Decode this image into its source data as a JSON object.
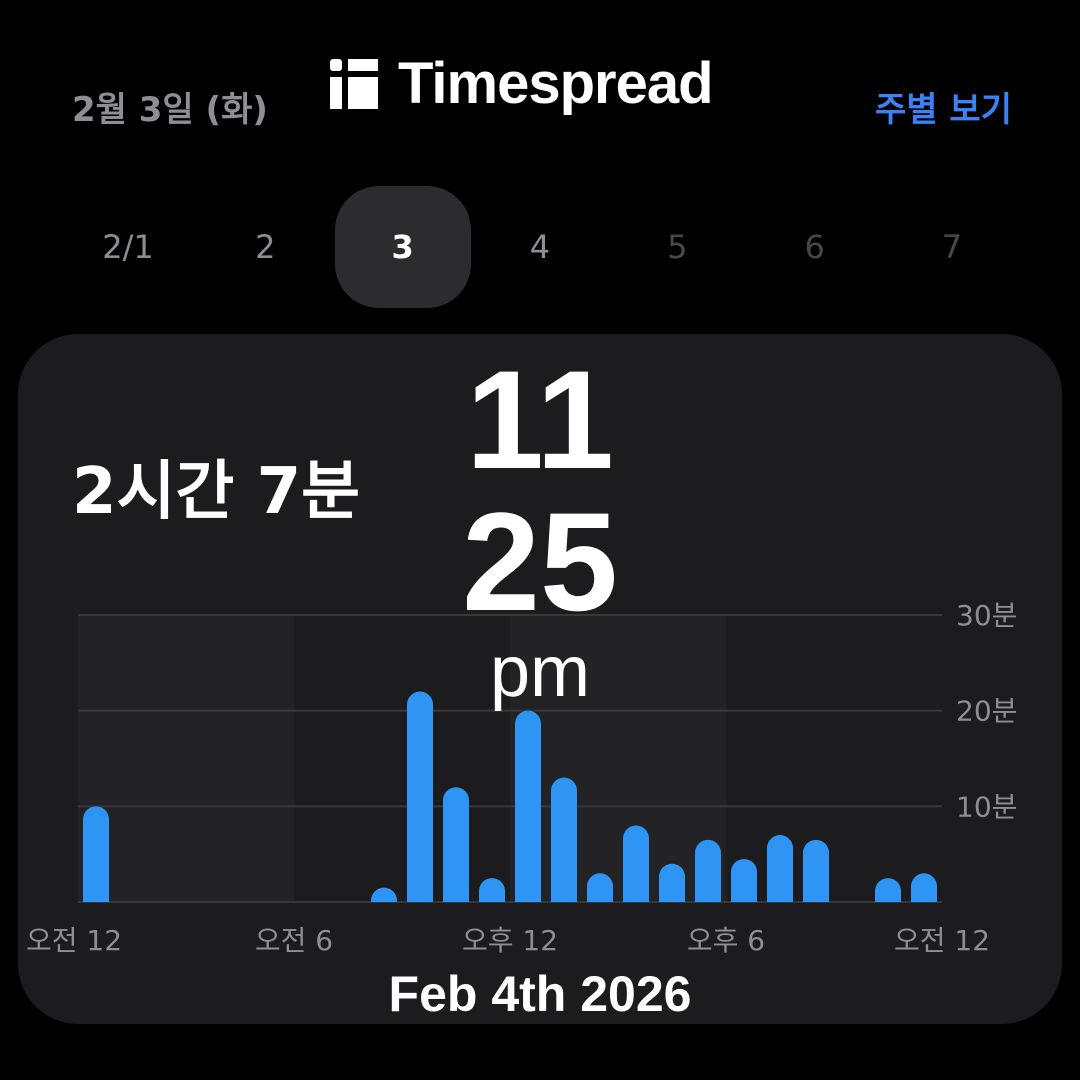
{
  "header": {
    "date": "2월 3일 (화)",
    "week_view": "주별 보기",
    "brand": "Timespread"
  },
  "days": [
    {
      "label": "2/1",
      "state": "past"
    },
    {
      "label": "2",
      "state": "past"
    },
    {
      "label": "3",
      "state": "selected"
    },
    {
      "label": "4",
      "state": "past"
    },
    {
      "label": "5",
      "state": "future"
    },
    {
      "label": "6",
      "state": "future"
    },
    {
      "label": "7",
      "state": "future"
    }
  ],
  "summary": {
    "total": "2시간 7분"
  },
  "overlay": {
    "hour": "11",
    "minute": "25",
    "ampm": "pm",
    "date": "Feb 4th 2026"
  },
  "chart_data": {
    "type": "bar",
    "x": [
      0,
      8,
      9,
      10,
      11,
      12,
      13,
      14,
      15,
      16,
      17,
      18,
      19,
      20,
      22,
      23
    ],
    "values": [
      10,
      1.5,
      22,
      12,
      2.5,
      20,
      13,
      3,
      8,
      4,
      6.5,
      4.5,
      7,
      6.5,
      2.5,
      3
    ],
    "xlim": [
      0,
      24
    ],
    "ylim": [
      0,
      30
    ],
    "yticks": [
      {
        "v": 10,
        "label": "10분"
      },
      {
        "v": 20,
        "label": "20분"
      },
      {
        "v": 30,
        "label": "30분"
      }
    ],
    "xticks": [
      {
        "v": 0,
        "label": "오전 12"
      },
      {
        "v": 6,
        "label": "오전 6"
      },
      {
        "v": 12,
        "label": "오후 12"
      },
      {
        "v": 18,
        "label": "오후 6"
      },
      {
        "v": 24,
        "label": "오전 12"
      }
    ],
    "grid": true,
    "bar_color": "#2f95f5"
  }
}
